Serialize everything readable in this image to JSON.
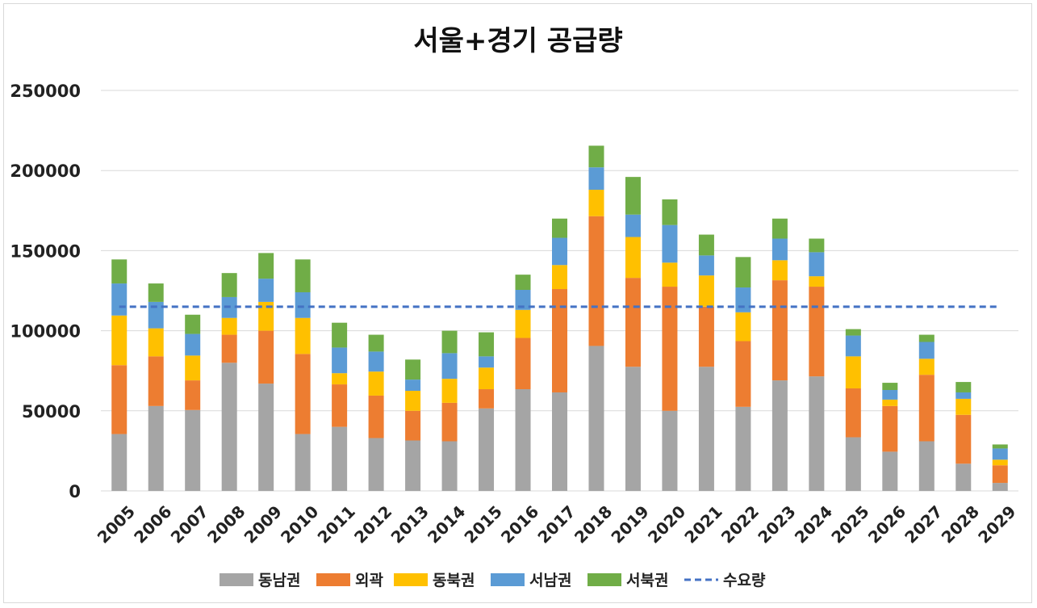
{
  "chart_data": {
    "type": "bar",
    "stacked": true,
    "title": "서울+경기 공급량",
    "xlabel": "",
    "ylabel": "",
    "ylim": [
      0,
      250000
    ],
    "yticks": [
      "0",
      "50000",
      "100000",
      "150000",
      "200000",
      "250000"
    ],
    "grid": true,
    "legend_position": "bottom",
    "categories": [
      "2005",
      "2006",
      "2007",
      "2008",
      "2009",
      "2010",
      "2011",
      "2012",
      "2013",
      "2014",
      "2015",
      "2016",
      "2017",
      "2018",
      "2019",
      "2020",
      "2021",
      "2022",
      "2023",
      "2024",
      "2025",
      "2026",
      "2027",
      "2028",
      "2029"
    ],
    "series": [
      {
        "name": "동남권",
        "color": "#a5a5a5",
        "values": [
          35500,
          53000,
          50500,
          80000,
          67000,
          35500,
          40000,
          33000,
          31500,
          31000,
          51500,
          63500,
          61500,
          90500,
          77500,
          50000,
          77500,
          52500,
          69000,
          71500,
          33500,
          24500,
          31000,
          17000,
          5000
        ]
      },
      {
        "name": "외곽",
        "color": "#ed7d31",
        "values": [
          43000,
          31000,
          18500,
          17500,
          33000,
          50000,
          26500,
          26500,
          18500,
          24000,
          12000,
          32000,
          64500,
          81000,
          55500,
          77500,
          37500,
          41000,
          62500,
          56000,
          30500,
          28500,
          41500,
          30500,
          11000
        ]
      },
      {
        "name": "동북권",
        "color": "#ffc000",
        "values": [
          31000,
          17500,
          15500,
          10500,
          18000,
          22500,
          7000,
          15000,
          12500,
          15000,
          13500,
          17500,
          15000,
          16500,
          25500,
          15000,
          19500,
          18000,
          12500,
          6500,
          20000,
          4000,
          10000,
          10000,
          3500
        ]
      },
      {
        "name": "서남권",
        "color": "#5b9bd5",
        "values": [
          20000,
          16500,
          13500,
          13000,
          14500,
          16000,
          16000,
          12500,
          7000,
          16000,
          7000,
          12500,
          17000,
          14000,
          14000,
          23500,
          12500,
          15500,
          13500,
          15000,
          13000,
          6000,
          10500,
          4000,
          7000
        ]
      },
      {
        "name": "서북권",
        "color": "#70ad47",
        "values": [
          15000,
          11500,
          12000,
          15000,
          16000,
          20500,
          15500,
          10500,
          12500,
          14000,
          15000,
          9500,
          12000,
          13500,
          23500,
          16000,
          13000,
          19000,
          12500,
          8500,
          4000,
          4500,
          4500,
          6500,
          2500
        ]
      }
    ],
    "lines": [
      {
        "name": "수요량",
        "color": "#4472c4",
        "style": "dashed",
        "value": 115000
      }
    ]
  }
}
